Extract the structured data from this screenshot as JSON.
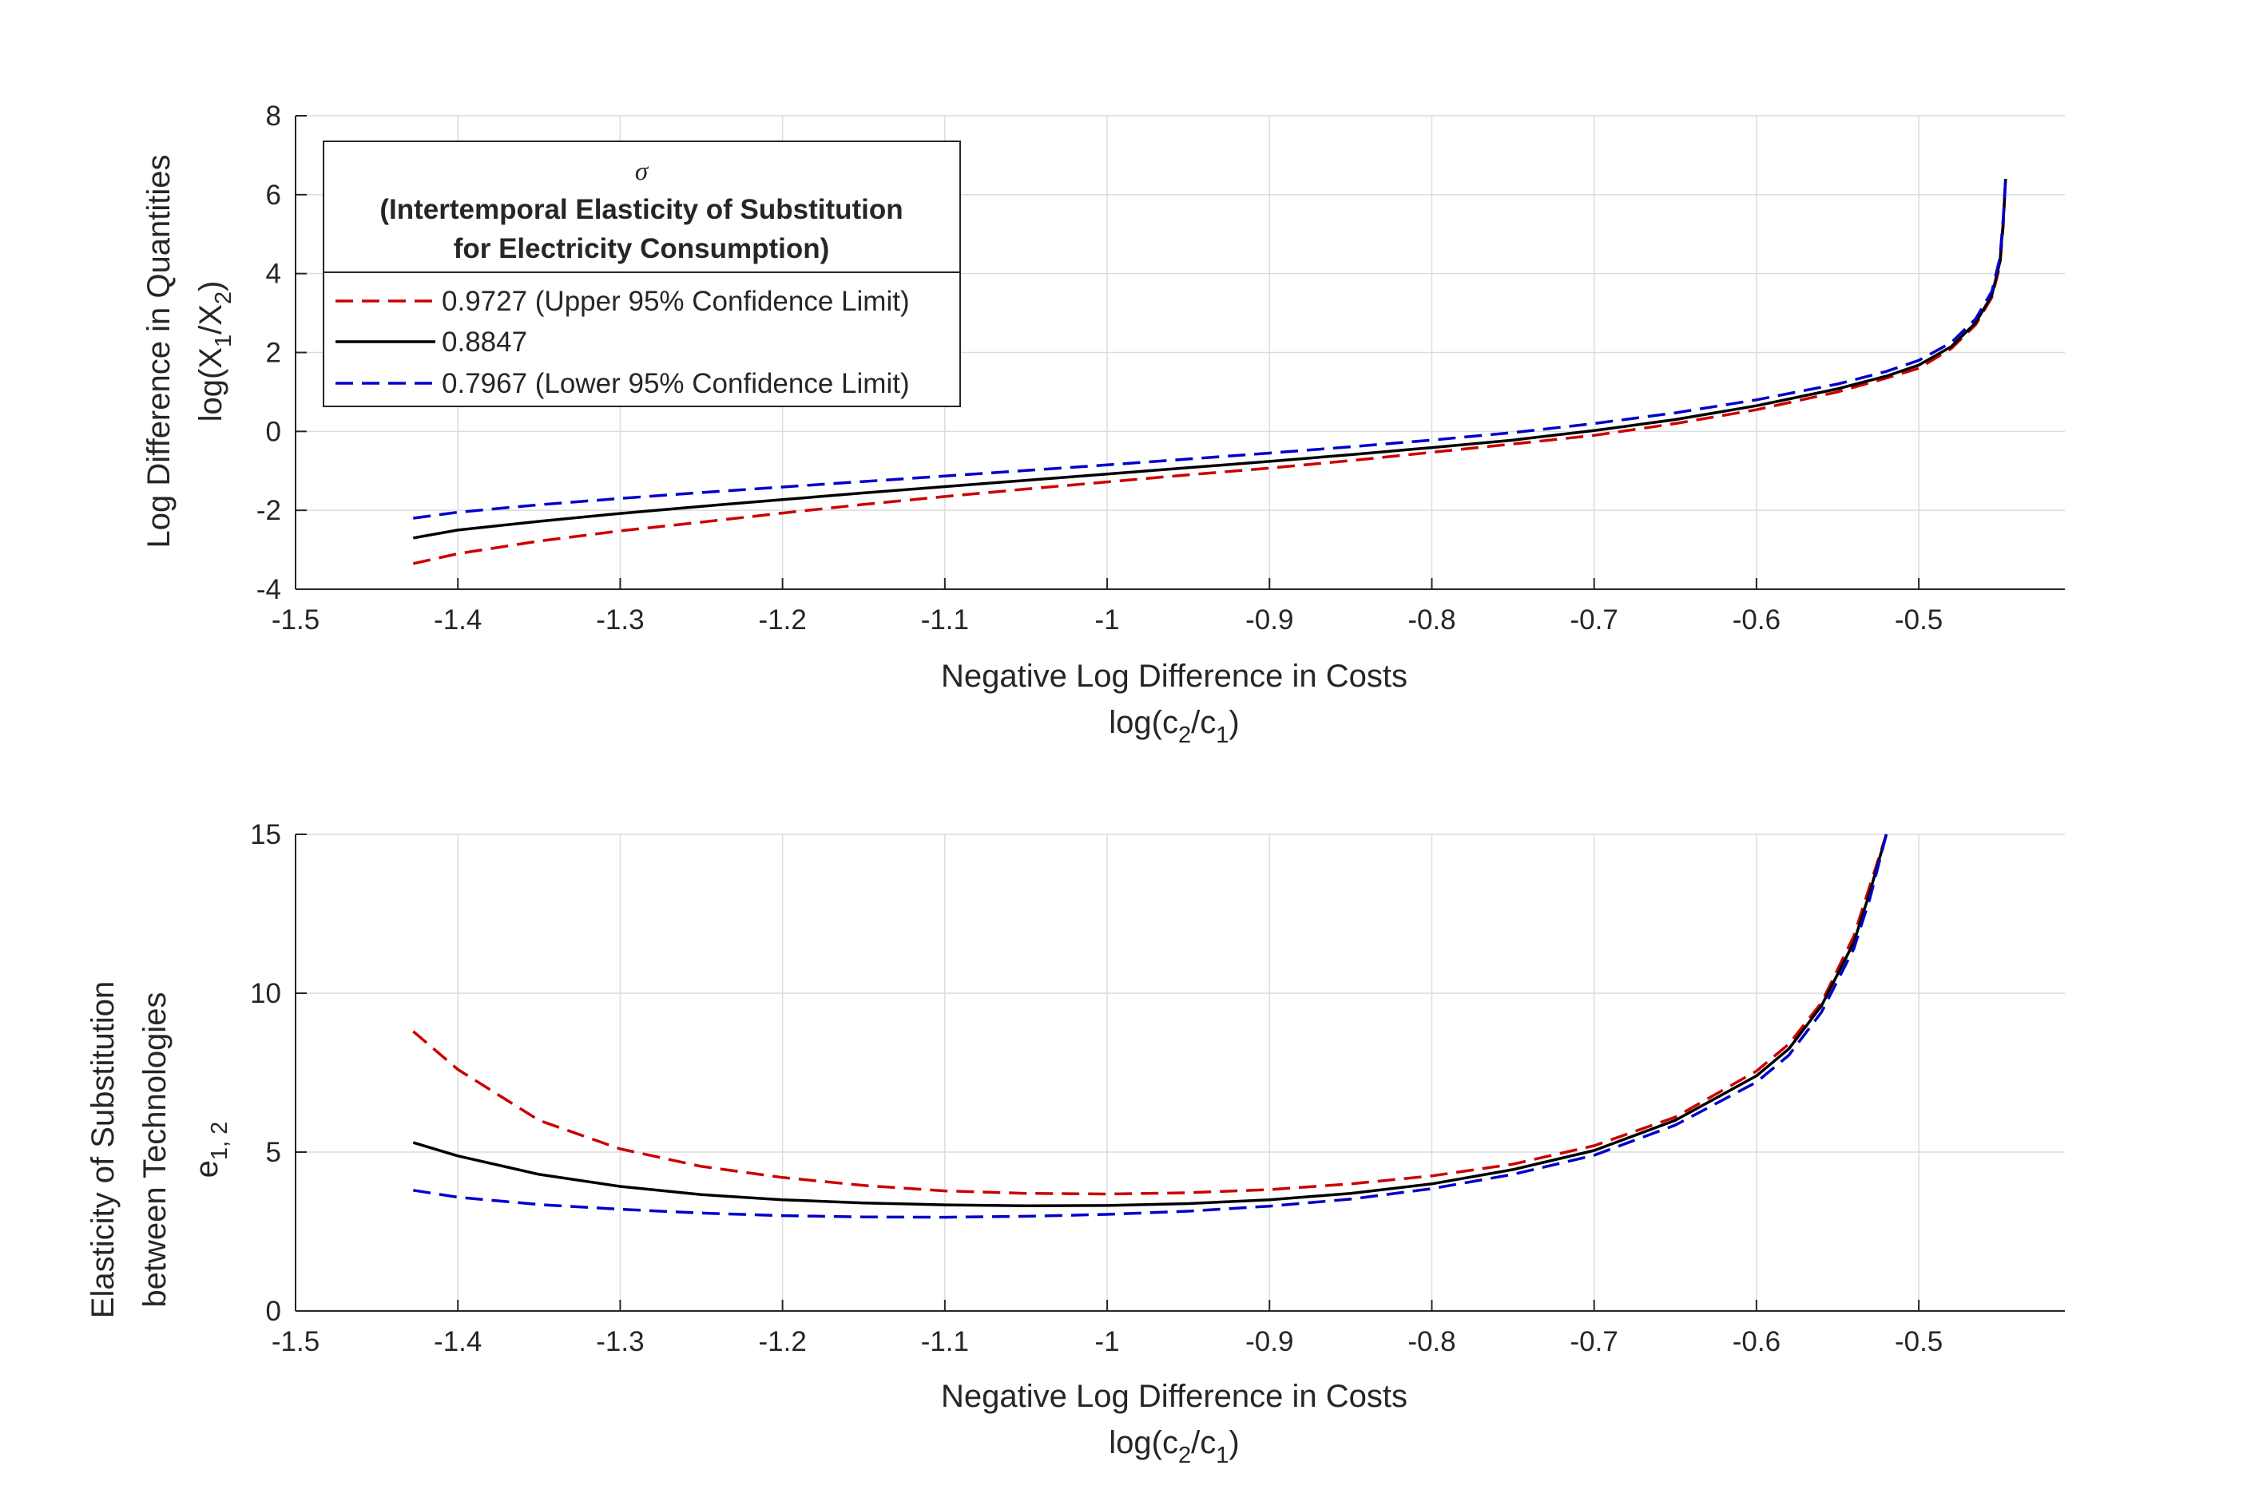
{
  "chart_data": [
    {
      "type": "line",
      "xlabel": "Negative Log Difference in Costs",
      "xlabel_line2": "log(c",
      "xlabel_line2_sub1": "2",
      "xlabel_line2_mid": "/c",
      "xlabel_line2_sub2": "1",
      "xlabel_line2_end": ")",
      "ylabel": "Log Difference in Quantities",
      "ylabel_line2": "log(X",
      "ylabel_line2_sub1": "1",
      "ylabel_line2_mid": "/X",
      "ylabel_line2_sub2": "2",
      "ylabel_line2_end": ")",
      "xlim": [
        -1.5,
        -0.41
      ],
      "ylim": [
        -4,
        8
      ],
      "xticks": [
        -1.5,
        -1.4,
        -1.3,
        -1.2,
        -1.1,
        -1,
        -0.9,
        -0.8,
        -0.7,
        -0.6,
        -0.5
      ],
      "xtick_labels": [
        "-1.5",
        "-1.4",
        "-1.3",
        "-1.2",
        "-1.1",
        "-1",
        "-0.9",
        "-0.8",
        "-0.7",
        "-0.6",
        "-0.5"
      ],
      "yticks": [
        -4,
        -2,
        0,
        2,
        4,
        6,
        8
      ],
      "ytick_labels": [
        "-4",
        "-2",
        "0",
        "2",
        "4",
        "6",
        "8"
      ],
      "grid": true,
      "legend": {
        "placement": "top-left",
        "title_symbol": "σ",
        "title_line1": "(Intertemporal Elasticity of Substitution",
        "title_line2": "for Electricity Consumption)",
        "entries": [
          {
            "label": "0.9727 (Upper 95% Confidence Limit)",
            "color": "#cc0000",
            "style": "dashed"
          },
          {
            "label": "0.8847",
            "color": "#000000",
            "style": "solid"
          },
          {
            "label": "0.7967 (Lower 95% Confidence Limit)",
            "color": "#0000cc",
            "style": "dashed"
          }
        ]
      },
      "series": [
        {
          "color": "#cc0000",
          "style": "dashed",
          "points": [
            [
              -1.4275,
              -3.35
            ],
            [
              -1.4,
              -3.1
            ],
            [
              -1.35,
              -2.78
            ],
            [
              -1.3,
              -2.52
            ],
            [
              -1.25,
              -2.3
            ],
            [
              -1.2,
              -2.07
            ],
            [
              -1.15,
              -1.85
            ],
            [
              -1.1,
              -1.65
            ],
            [
              -1.05,
              -1.46
            ],
            [
              -1.0,
              -1.28
            ],
            [
              -0.95,
              -1.1
            ],
            [
              -0.9,
              -0.93
            ],
            [
              -0.85,
              -0.74
            ],
            [
              -0.8,
              -0.53
            ],
            [
              -0.75,
              -0.32
            ],
            [
              -0.7,
              -0.1
            ],
            [
              -0.65,
              0.2
            ],
            [
              -0.6,
              0.55
            ],
            [
              -0.55,
              1.0
            ],
            [
              -0.52,
              1.35
            ],
            [
              -0.5,
              1.6
            ],
            [
              -0.48,
              2.1
            ],
            [
              -0.465,
              2.7
            ],
            [
              -0.455,
              3.4
            ],
            [
              -0.45,
              4.2
            ],
            [
              -0.448,
              5.2
            ],
            [
              -0.4465,
              6.4
            ]
          ]
        },
        {
          "color": "#000000",
          "style": "solid",
          "points": [
            [
              -1.4275,
              -2.7
            ],
            [
              -1.4,
              -2.5
            ],
            [
              -1.35,
              -2.28
            ],
            [
              -1.3,
              -2.08
            ],
            [
              -1.25,
              -1.9
            ],
            [
              -1.2,
              -1.73
            ],
            [
              -1.15,
              -1.56
            ],
            [
              -1.1,
              -1.4
            ],
            [
              -1.05,
              -1.24
            ],
            [
              -1.0,
              -1.08
            ],
            [
              -0.95,
              -0.92
            ],
            [
              -0.9,
              -0.76
            ],
            [
              -0.85,
              -0.59
            ],
            [
              -0.8,
              -0.41
            ],
            [
              -0.75,
              -0.22
            ],
            [
              -0.7,
              0.02
            ],
            [
              -0.65,
              0.3
            ],
            [
              -0.6,
              0.65
            ],
            [
              -0.55,
              1.08
            ],
            [
              -0.52,
              1.4
            ],
            [
              -0.5,
              1.68
            ],
            [
              -0.48,
              2.15
            ],
            [
              -0.465,
              2.75
            ],
            [
              -0.455,
              3.45
            ],
            [
              -0.45,
              4.3
            ],
            [
              -0.448,
              5.3
            ],
            [
              -0.4465,
              6.4
            ]
          ]
        },
        {
          "color": "#0000cc",
          "style": "dashed",
          "points": [
            [
              -1.4275,
              -2.2
            ],
            [
              -1.4,
              -2.05
            ],
            [
              -1.35,
              -1.86
            ],
            [
              -1.3,
              -1.7
            ],
            [
              -1.25,
              -1.55
            ],
            [
              -1.2,
              -1.41
            ],
            [
              -1.15,
              -1.27
            ],
            [
              -1.1,
              -1.13
            ],
            [
              -1.05,
              -0.99
            ],
            [
              -1.0,
              -0.85
            ],
            [
              -0.95,
              -0.7
            ],
            [
              -0.9,
              -0.55
            ],
            [
              -0.85,
              -0.39
            ],
            [
              -0.8,
              -0.22
            ],
            [
              -0.75,
              -0.03
            ],
            [
              -0.7,
              0.2
            ],
            [
              -0.65,
              0.47
            ],
            [
              -0.6,
              0.8
            ],
            [
              -0.55,
              1.2
            ],
            [
              -0.52,
              1.52
            ],
            [
              -0.5,
              1.8
            ],
            [
              -0.48,
              2.25
            ],
            [
              -0.465,
              2.85
            ],
            [
              -0.455,
              3.55
            ],
            [
              -0.45,
              4.4
            ],
            [
              -0.448,
              5.4
            ],
            [
              -0.4465,
              6.4
            ]
          ]
        }
      ]
    },
    {
      "type": "line",
      "xlabel": "Negative Log Difference in Costs",
      "xlabel_line2": "log(c",
      "xlabel_line2_sub1": "2",
      "xlabel_line2_mid": "/c",
      "xlabel_line2_sub2": "1",
      "xlabel_line2_end": ")",
      "ylabel": "Elasticity of Substitution",
      "ylabel_line2": "between Technologies",
      "ylabel_line3": "e",
      "ylabel_line3_sub": "1, 2",
      "xlim": [
        -1.5,
        -0.41
      ],
      "ylim": [
        0,
        15
      ],
      "xticks": [
        -1.5,
        -1.4,
        -1.3,
        -1.2,
        -1.1,
        -1,
        -0.9,
        -0.8,
        -0.7,
        -0.6,
        -0.5
      ],
      "xtick_labels": [
        "-1.5",
        "-1.4",
        "-1.3",
        "-1.2",
        "-1.1",
        "-1",
        "-0.9",
        "-0.8",
        "-0.7",
        "-0.6",
        "-0.5"
      ],
      "yticks": [
        0,
        5,
        10,
        15
      ],
      "ytick_labels": [
        "0",
        "5",
        "10",
        "15"
      ],
      "grid": true,
      "series": [
        {
          "color": "#cc0000",
          "style": "dashed",
          "points": [
            [
              -1.4275,
              8.8
            ],
            [
              -1.4,
              7.6
            ],
            [
              -1.35,
              6.0
            ],
            [
              -1.3,
              5.1
            ],
            [
              -1.25,
              4.55
            ],
            [
              -1.2,
              4.2
            ],
            [
              -1.15,
              3.95
            ],
            [
              -1.1,
              3.78
            ],
            [
              -1.05,
              3.7
            ],
            [
              -1.0,
              3.68
            ],
            [
              -0.95,
              3.72
            ],
            [
              -0.9,
              3.82
            ],
            [
              -0.85,
              4.0
            ],
            [
              -0.8,
              4.25
            ],
            [
              -0.75,
              4.62
            ],
            [
              -0.7,
              5.2
            ],
            [
              -0.65,
              6.1
            ],
            [
              -0.6,
              7.55
            ],
            [
              -0.58,
              8.4
            ],
            [
              -0.56,
              9.7
            ],
            [
              -0.54,
              11.8
            ],
            [
              -0.53,
              13.4
            ],
            [
              -0.52,
              15.0
            ]
          ]
        },
        {
          "color": "#000000",
          "style": "solid",
          "points": [
            [
              -1.4275,
              5.3
            ],
            [
              -1.4,
              4.88
            ],
            [
              -1.35,
              4.3
            ],
            [
              -1.3,
              3.92
            ],
            [
              -1.25,
              3.66
            ],
            [
              -1.2,
              3.5
            ],
            [
              -1.15,
              3.4
            ],
            [
              -1.1,
              3.34
            ],
            [
              -1.05,
              3.31
            ],
            [
              -1.0,
              3.32
            ],
            [
              -0.95,
              3.38
            ],
            [
              -0.9,
              3.5
            ],
            [
              -0.85,
              3.7
            ],
            [
              -0.8,
              4.0
            ],
            [
              -0.75,
              4.45
            ],
            [
              -0.7,
              5.05
            ],
            [
              -0.65,
              6.0
            ],
            [
              -0.6,
              7.4
            ],
            [
              -0.58,
              8.25
            ],
            [
              -0.56,
              9.6
            ],
            [
              -0.54,
              11.6
            ],
            [
              -0.53,
              13.2
            ],
            [
              -0.52,
              15.0
            ]
          ]
        },
        {
          "color": "#0000cc",
          "style": "dashed",
          "points": [
            [
              -1.4275,
              3.8
            ],
            [
              -1.4,
              3.58
            ],
            [
              -1.35,
              3.35
            ],
            [
              -1.3,
              3.2
            ],
            [
              -1.25,
              3.08
            ],
            [
              -1.2,
              3.0
            ],
            [
              -1.15,
              2.96
            ],
            [
              -1.1,
              2.95
            ],
            [
              -1.05,
              2.98
            ],
            [
              -1.0,
              3.04
            ],
            [
              -0.95,
              3.14
            ],
            [
              -0.9,
              3.3
            ],
            [
              -0.85,
              3.52
            ],
            [
              -0.8,
              3.85
            ],
            [
              -0.75,
              4.3
            ],
            [
              -0.7,
              4.9
            ],
            [
              -0.65,
              5.85
            ],
            [
              -0.6,
              7.2
            ],
            [
              -0.58,
              8.05
            ],
            [
              -0.56,
              9.4
            ],
            [
              -0.54,
              11.4
            ],
            [
              -0.53,
              13.0
            ],
            [
              -0.52,
              15.0
            ]
          ]
        }
      ]
    }
  ]
}
